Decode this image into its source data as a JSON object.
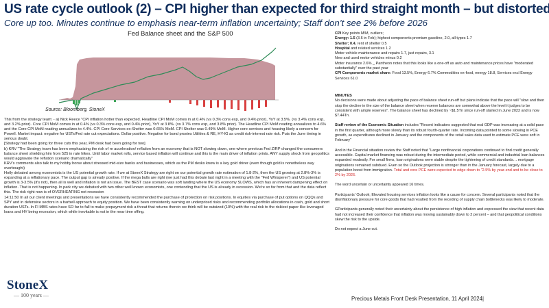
{
  "header": {
    "title": "US rate cycle outlook (2) – CPI higher than expected for third straight month – but distorted.",
    "subtitle": "Core up too.  Minutes continue to emphasis near-term inflation uncertainty; Staff don’t see 2% before 2026"
  },
  "figure": {
    "title": "Fed Balance sheet and the S&P 500",
    "source": "Source:  Bloomberg, StoneX"
  },
  "left_text": [
    "This from the strategy team: - a) Nick Reece \"CPI inflation hotter than expected. Headline CPI MoM comes in at 0.4% (vs 0.3% cons exp, and 0.4% prior), YoY at 3.5%.  (vs 3.4% cons exp, and 3.2% prior). Core CPI MoM comes in at 0.4% (vs 0.3% cons exp, and 0.4% prior), YoY at 3.8%.  (vs 3.7% cons exp, and 3.8% prior). The Headline CPI MoM reading annualizes to 4.6% and the Core CPI MoM reading annualizes to 4.4%. CPI Core Services ex-Shelter was 0.65% MoM. CPI Shelter was 0.49% MoM.  Higher core services and  housing likely a concern for Powell. Market impact: negative for USTs/Fed rate cut expectations. Dollar positive. Negative for bond proxies Utilities & RE, HY-IG as credit risk-interest rate risk. Puts the June timing in serious doubt.",
    "[Strategy had been going for three cuts this year, PM desk had been going for two]",
    "b) KRV \"The Strategy team has been emphasizing the risk of re acceleration/ reflation from an economy that is NOT slowing down, one where previous Fed ZIRP changed the consumers balance sheet shielding him from 525  in rate hikes. Until labor market rolls, service based inflation will continue and this is the main driver of inflation prints. ANY supply shock from geopolitics would aggravate the reflation scenario dramatically\"",
    "KRV's comments also talk to my hobby horse about stressed mid-size banks and businesses, which as the PM desks know is a key gold driver (even though gold is nonetheless way overbought)",
    "Hotly debated among economists is the US potential growth rate. If we at StoneX Strategy are right on our potential growth rate estimation of 1.8-2%, then the US growing at 2.8%-3% is expanding at a reflationary pace. The output gap is already positive. If the mega bulls are right (we just had this debate last night in a  meeting with the \"Fed Whisperer\") and US potential growth is 3-3.5% (it's not), then all is well and inflation is not an issue. The BEST case scenario was soft landing where the US economy SLOWS, which has an inherent dampening effect on inflation. That is not happening. In park city we debated with two other well known economists, one contending that the US is already in recession. We're so far from that and the data reflect this. The risk right now is of OVERHEATING not recession",
    "14:11:50  In all our client meetings and presentations we have consistently recommended the purchase of protection on risk positions. In equities via purchase of put options on QQQs and SPY and in defensive sectors in a barbell approach to equity position. We have been consistently warning on underpriced risks and recommending portfolio allocations in cash, gold and short duration USTs.  In FI MBS rates have SO far to fall to make prepayment risk a threat that returns therein we think will be outsized (10%) with the real risk to the riskiest paper like leveraged loans and HY being recession, which while inevitable is not in the near time offing."
  ],
  "right_kp": [
    {
      "bold": "CPI",
      "text": " Key points M/M, outliers;"
    },
    {
      "bold": "Energy:  1.5",
      "text": " (3.6 in Feb); highest components premium gasoline, 2.0, all types 1.7"
    },
    {
      "bold": "Shelter; 0.4.",
      "text": " rent of shelter 0.5"
    },
    {
      "bold": "Hospital",
      "text": "  and related services 1.2"
    },
    {
      "bold": "",
      "text": "Motor vehicle maintenance and repairs 1.7,  just repairs, 3.1"
    },
    {
      "bold": "",
      "text": "New and used motor vehicles minus 0.2"
    },
    {
      "bold": "",
      "text": "Motor insurance 2.6% _ Pantheon notes that this looks like a one-off as auto and maintenance prices have \"moderated substantially\" over the past year"
    },
    {
      "bold": "CPI Components market share:",
      "text": " Food 13.5%, Energy 6.7% Commodities ex-food, energy 18.8, Services excl Energy Services 61.0"
    }
  ],
  "minutes": {
    "heading": "MINUTES",
    "p1": "No decisions were made about adjusting the pace of balance sheet run-off but plans indicate  that the pace will \"slow and then stop the decline in the size of the balance sheet when reserve balances are somewhat above the level it judges to be consistent with ample reserves\".  The balance sheet has declined by ~$1.5Tn  since run-off started in June 2022  and is now $7.44Tn.",
    "p2_bold": "Staff review of the Economic Situation",
    "p2": " includes \"Recent indicators suggested that real GDP was increasing at a solid pace in the first quarter, although more slowly than its robust fourth-quarter rate. Incoming data pointed to some slowing in PCE growth, as expenditures declined in January and the components of the retail sales data used to estimate PCE were soft in February\"",
    "p3": "And in the Financial situation review the Staff noted that \"Large nonfinancial corporations continued to find credit generally accessible. Capital market financing was robust during the intermediate period, while commercial and industrial loan balances expanded modestly. For small firms, loan originations were stable despite the tightening of credit standards… mortgage originations remained subdued. Even so the Outlook projection is stronger than in the January forecast, largely due to a population boost from immigration. ",
    "p3_red": "Total and core PCE were expected to edge down to \"2.5% by year-end and to be close to 2% by 2026.",
    "p4": "The word uncertain or uncertainty appeared 16 times.",
    "p5": "Participants' Outlook; Elevated housing services inflation looks like a cause for concern. Several participants noted that the disinflationary pressure for core goods that had resulted from the receding of supply chain bottlenecks was likely to moderate.",
    "p6": "GParticipants generally noted their uncertainty about the persistence of high inflation and expressed the view that recent data had not increased their confidence that inflation was moving sustainably down to 2 percent – and that geopolitical conditions skew the risk to the upside.",
    "p7": "Do not expect a June cut."
  },
  "logo": {
    "name": "StoneX",
    "sub": "— 100 years —"
  },
  "footer": "Precious Metals Front Desk Presentation, 11 April 2024|",
  "colors": {
    "title": "#0f2d5c",
    "red": "#d02020",
    "area_fill": "#c08b92",
    "spx_line": "#2e8b57",
    "bar_green": "#3aa655",
    "bar_red": "#d94040"
  }
}
